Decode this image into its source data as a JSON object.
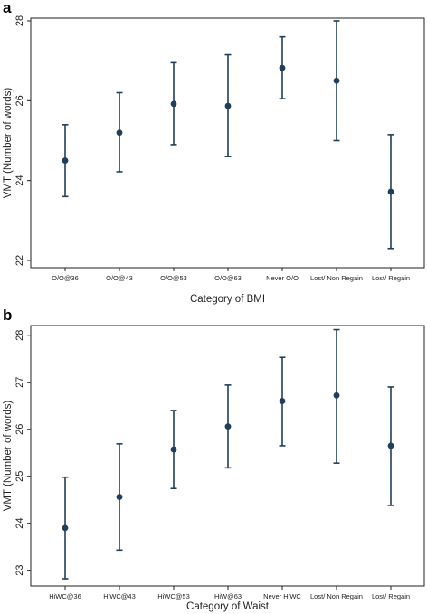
{
  "panels": [
    {
      "letter": "a"
    },
    {
      "letter": "b"
    }
  ],
  "chart_data": [
    {
      "type": "scatter",
      "subtype": "error-bar",
      "title": "",
      "xlabel": "Category of BMI",
      "ylabel": "VMT (Number of words)",
      "categories": [
        "O/O@36",
        "O/O@43",
        "O/O@53",
        "O/O@63",
        "Never O/O",
        "Lost/ Non Regain",
        "Lost/ Regain"
      ],
      "values": [
        24.5,
        25.2,
        25.92,
        25.87,
        26.82,
        26.5,
        23.72
      ],
      "lower": [
        23.6,
        24.22,
        24.9,
        24.6,
        26.05,
        25.0,
        22.3
      ],
      "upper": [
        25.4,
        26.2,
        26.95,
        27.15,
        27.6,
        28.0,
        25.15
      ],
      "yticks": [
        22,
        24,
        26,
        28
      ],
      "ylim": [
        22,
        28
      ],
      "grid": false,
      "color": "#1f3f5b"
    },
    {
      "type": "scatter",
      "subtype": "error-bar",
      "title": "",
      "xlabel": "Category of Waist",
      "ylabel": "VMT (Number of words)",
      "categories": [
        "HiWC@36",
        "HiWC@43",
        "HiWC@53",
        "HiW@63",
        "Never HiWC",
        "Lost/ Non Regain",
        "Lost/ Regain"
      ],
      "values": [
        23.9,
        24.56,
        25.57,
        26.06,
        26.6,
        26.72,
        25.65
      ],
      "lower": [
        22.82,
        23.43,
        24.74,
        25.18,
        25.65,
        25.28,
        24.38
      ],
      "upper": [
        24.98,
        25.69,
        26.4,
        26.94,
        27.53,
        28.12,
        26.9
      ],
      "yticks": [
        23,
        24,
        25,
        26,
        27,
        28
      ],
      "ylim": [
        23,
        28
      ],
      "grid": false,
      "color": "#1f3f5b"
    }
  ]
}
